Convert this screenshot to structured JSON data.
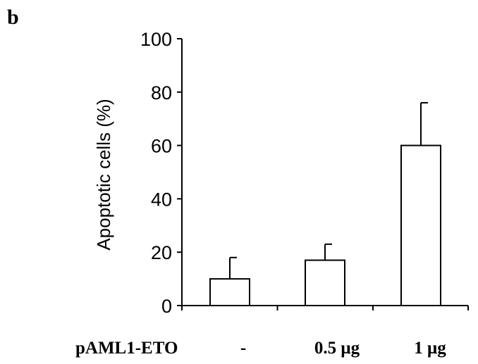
{
  "panel_label": "b",
  "chart_data": {
    "type": "bar",
    "title": "",
    "xlabel": "",
    "ylabel": "Apoptotic cells (%)",
    "ylim": [
      0,
      100
    ],
    "yticks": [
      "0",
      "20",
      "40",
      "60",
      "80",
      "100"
    ],
    "x_row_label": "pAML1-ETO",
    "categories": [
      "-",
      "0.5 μg",
      "1 μg"
    ],
    "values": [
      10,
      17,
      60
    ],
    "error_bars": [
      8,
      6,
      16
    ],
    "grid": false,
    "legend": "none",
    "bar_fill": "#ffffff",
    "stroke_color": "#000000"
  }
}
